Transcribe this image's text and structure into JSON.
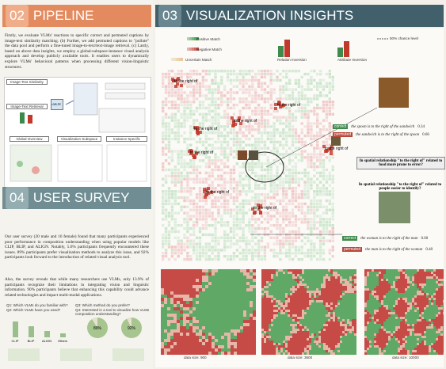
{
  "pipeline": {
    "number": "02",
    "title": "PIPELINE",
    "text": "Firstly, we evaluate VLMs' reactions to specific correct and permuted captions by image-text similarity matching. (b) Further, we add permuted captions to \"pollute\" the data pool and perform a fine-tuned image-to-text/text-image retrieval. (c) Lastly, based on above data insights, we employ a global-subspace-instance visual analysis approach and develop publicly available tools. It enables users to dynamically explore VLMs' behavioral patterns when processing different vision-linguistic structures.",
    "steps": [
      "Image-Text Similarity",
      "Image-Text Retrieval",
      "VLM",
      "Global Overview",
      "Visualization Subspace",
      "Instance Specific"
    ]
  },
  "survey": {
    "number": "04",
    "title": "USER SURVEY",
    "paragraphs": [
      "Our user survey (20 male and 16 female) found that many participants experienced poor performance in composition understanding when using popular models like CLIP, BLIP, and ALIGN. Notably, 5.6% participants frequently encountered these issues. 89% participants prefer visualization methods to analyze this issue, and 92% participants look forward to the introduction of related visual analysis tool.",
      "Also, the survey reveals that while many researchers use VLMs, only 13.9% of participants recognize their limitations in integrating vision and linguistic information. 90% participants believe that enhancing this capability could advance related technologies and impact multi-modal applications."
    ],
    "questions": [
      "Q1: Which VLMs do you familiar with?",
      "Q2: Which VLMs have you used?",
      "Q3: Which method do you prefer?",
      "Q4: Interested in a tool to visualize how VLMs composition understanding?"
    ],
    "pies": [
      "89%",
      "92%"
    ],
    "models": [
      "CLIP",
      "BLIP",
      "ALIGN",
      "Others"
    ]
  },
  "insights": {
    "number": "03",
    "title": "VISUALIZATION INSIGHTS",
    "legend": [
      "Positive Match",
      "Negative Match",
      "Uncertain Match",
      "Relation Inversion",
      "Attribute Inversion",
      "50% chance level"
    ],
    "scatter_labels": [
      "to the right of",
      "to the right of",
      "to the right of",
      "to the right of",
      "to the right of",
      "to the right of",
      "to the right of",
      "to the right of"
    ],
    "examples": [
      {
        "tag": "correct",
        "caption": "the spoon is to the right of the sandwich",
        "score": "0.34"
      },
      {
        "tag": "permuted",
        "caption": "the sandwich is to the right of the spoon",
        "score": "0.66"
      },
      {
        "tag": "correct",
        "caption": "the woman is to the right of the man",
        "score": "0.60"
      },
      {
        "tag": "permuted",
        "caption": "the man is to the right of the woman",
        "score": "0.40"
      }
    ],
    "questions": [
      "In spatial relationship \"to the right of\" related to food more prone to error?",
      "In spatial relationship \"to the right of\" related to people easier to identify?"
    ],
    "data_sizes": [
      "data size: 900",
      "data size: 3600",
      "data size: 10000"
    ]
  }
}
